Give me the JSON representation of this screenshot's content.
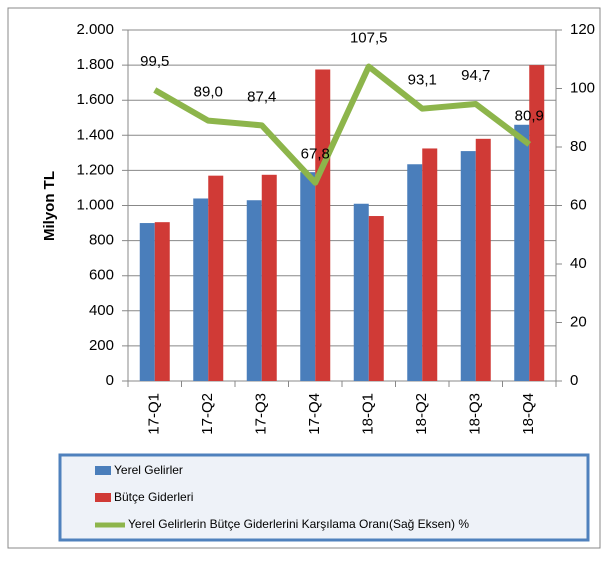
{
  "chart_data": {
    "type": "bar-line",
    "y_axis_label": "Milyon TL",
    "categories": [
      "17-Q1",
      "17-Q2",
      "17-Q3",
      "17-Q4",
      "18-Q1",
      "18-Q2",
      "18-Q3",
      "18-Q4"
    ],
    "series": [
      {
        "name": "Yerel Gelirler",
        "type": "bar",
        "color": "#4a7ebb",
        "values": [
          900,
          1040,
          1030,
          1190,
          1010,
          1235,
          1310,
          1460
        ]
      },
      {
        "name": "Bütçe Giderleri",
        "type": "bar",
        "color": "#d03a36",
        "values": [
          905,
          1170,
          1175,
          1775,
          940,
          1325,
          1380,
          1800
        ]
      },
      {
        "name": "Yerel Gelirlerin Bütçe Giderlerini Karşılama Oranı(Sağ Eksen) %",
        "type": "line",
        "axis": "y2",
        "color": "#8db54b",
        "values": [
          99.5,
          89.0,
          87.4,
          67.8,
          107.5,
          93.1,
          94.7,
          80.9
        ],
        "value_labels": [
          "99,5",
          "89,0",
          "87,4",
          "67,8",
          "107,5",
          "93,1",
          "94,7",
          "80,9"
        ]
      }
    ],
    "ylim": [
      0,
      2000
    ],
    "yticks": [
      0,
      200,
      400,
      600,
      800,
      {
        "value": 1000,
        "label": "1.000"
      },
      {
        "value": 1200,
        "label": "1.200"
      },
      {
        "value": 1400,
        "label": "1.400"
      },
      {
        "value": 1600,
        "label": "1.600"
      },
      {
        "value": 1800,
        "label": "1.800"
      },
      {
        "value": 2000,
        "label": "2.000"
      }
    ],
    "y2lim": [
      0,
      120
    ],
    "y2ticks": [
      0,
      20,
      40,
      60,
      80,
      100,
      120
    ],
    "grid": true
  }
}
